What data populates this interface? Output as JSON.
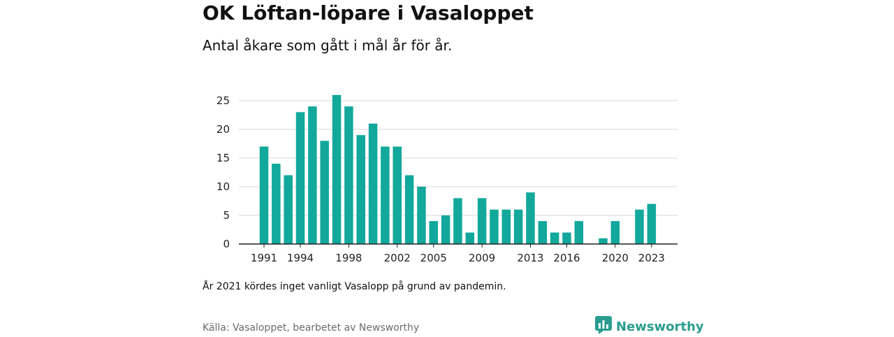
{
  "title": "OK Löftan-löpare i Vasaloppet",
  "subtitle": "Antal åkare som gått i mål år för år.",
  "note": "År 2021 kördes inget vanligt Vasalopp på grund av pandemin.",
  "source": "Källa: Vasaloppet, bearbetet av Newsworthy",
  "brand": {
    "name": "Newsworthy",
    "icon": "newsworthy-logo-icon"
  },
  "colors": {
    "bar": "#12a89b",
    "grid": "#d9d9d9",
    "axis": "#222222",
    "brand": "#2a9d8f"
  },
  "chart_data": {
    "type": "bar",
    "x": [
      1991,
      1992,
      1993,
      1994,
      1995,
      1996,
      1997,
      1998,
      1999,
      2000,
      2001,
      2002,
      2003,
      2004,
      2005,
      2006,
      2007,
      2008,
      2009,
      2010,
      2011,
      2012,
      2013,
      2014,
      2015,
      2016,
      2017,
      2018,
      2019,
      2020,
      2021,
      2022,
      2023
    ],
    "values": [
      17,
      14,
      12,
      23,
      24,
      18,
      26,
      24,
      19,
      21,
      17,
      17,
      12,
      10,
      4,
      5,
      8,
      2,
      8,
      6,
      6,
      6,
      9,
      4,
      2,
      2,
      4,
      null,
      1,
      4,
      null,
      6,
      7
    ],
    "x_tick_labels": [
      "1991",
      "1994",
      "1998",
      "2002",
      "2005",
      "2009",
      "2013",
      "2016",
      "2020",
      "2023"
    ],
    "y_ticks": [
      0,
      5,
      10,
      15,
      20,
      25
    ],
    "ylim": [
      0,
      26
    ],
    "xlabel": "",
    "ylabel": "",
    "grid": true,
    "legend": "none"
  }
}
